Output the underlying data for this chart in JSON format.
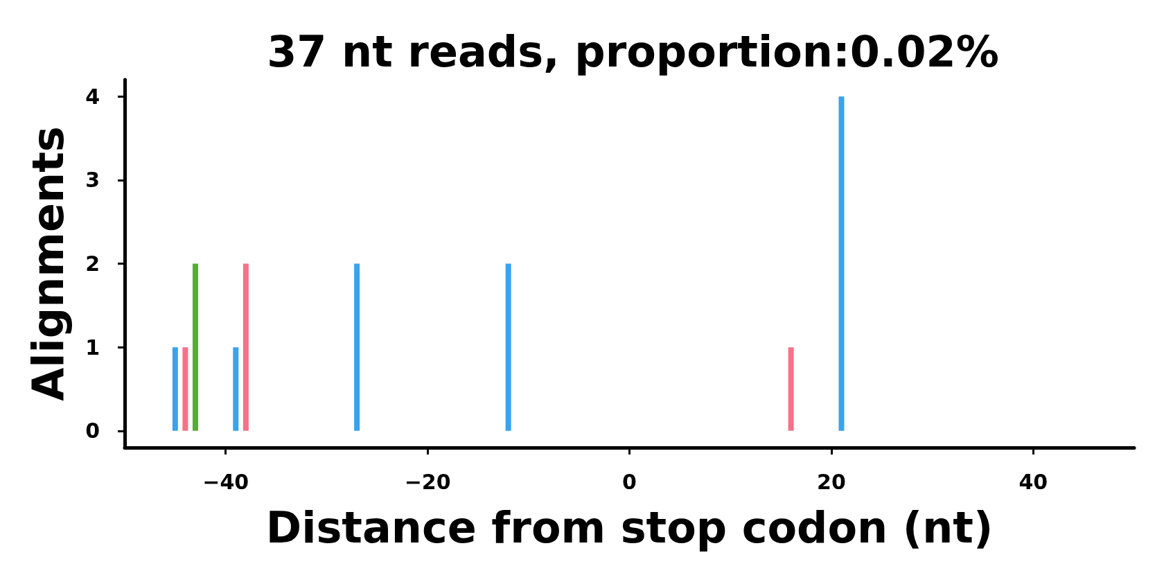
{
  "chart_data": {
    "type": "bar",
    "title": "37 nt reads, proportion:0.02%",
    "xlabel": "Distance from stop codon (nt)",
    "ylabel": "Alignments",
    "series": [
      {
        "color": "#3ba3ec",
        "x": [
          -45,
          -39,
          -27,
          -12,
          21
        ],
        "values": [
          1,
          1,
          2,
          2,
          4
        ]
      },
      {
        "color": "#f77189",
        "x": [
          -44,
          -38,
          16
        ],
        "values": [
          1,
          2,
          1
        ]
      },
      {
        "color": "#50b131",
        "x": [
          -43
        ],
        "values": [
          2
        ]
      }
    ],
    "xlim": [
      -50,
      50
    ],
    "xticks": [
      {
        "value": -40,
        "label": "−40"
      },
      {
        "value": -20,
        "label": "−20"
      },
      0,
      20,
      40
    ],
    "ylim": [
      -0.2,
      4.2
    ],
    "yticks": [
      0,
      1,
      2,
      3,
      4
    ]
  }
}
